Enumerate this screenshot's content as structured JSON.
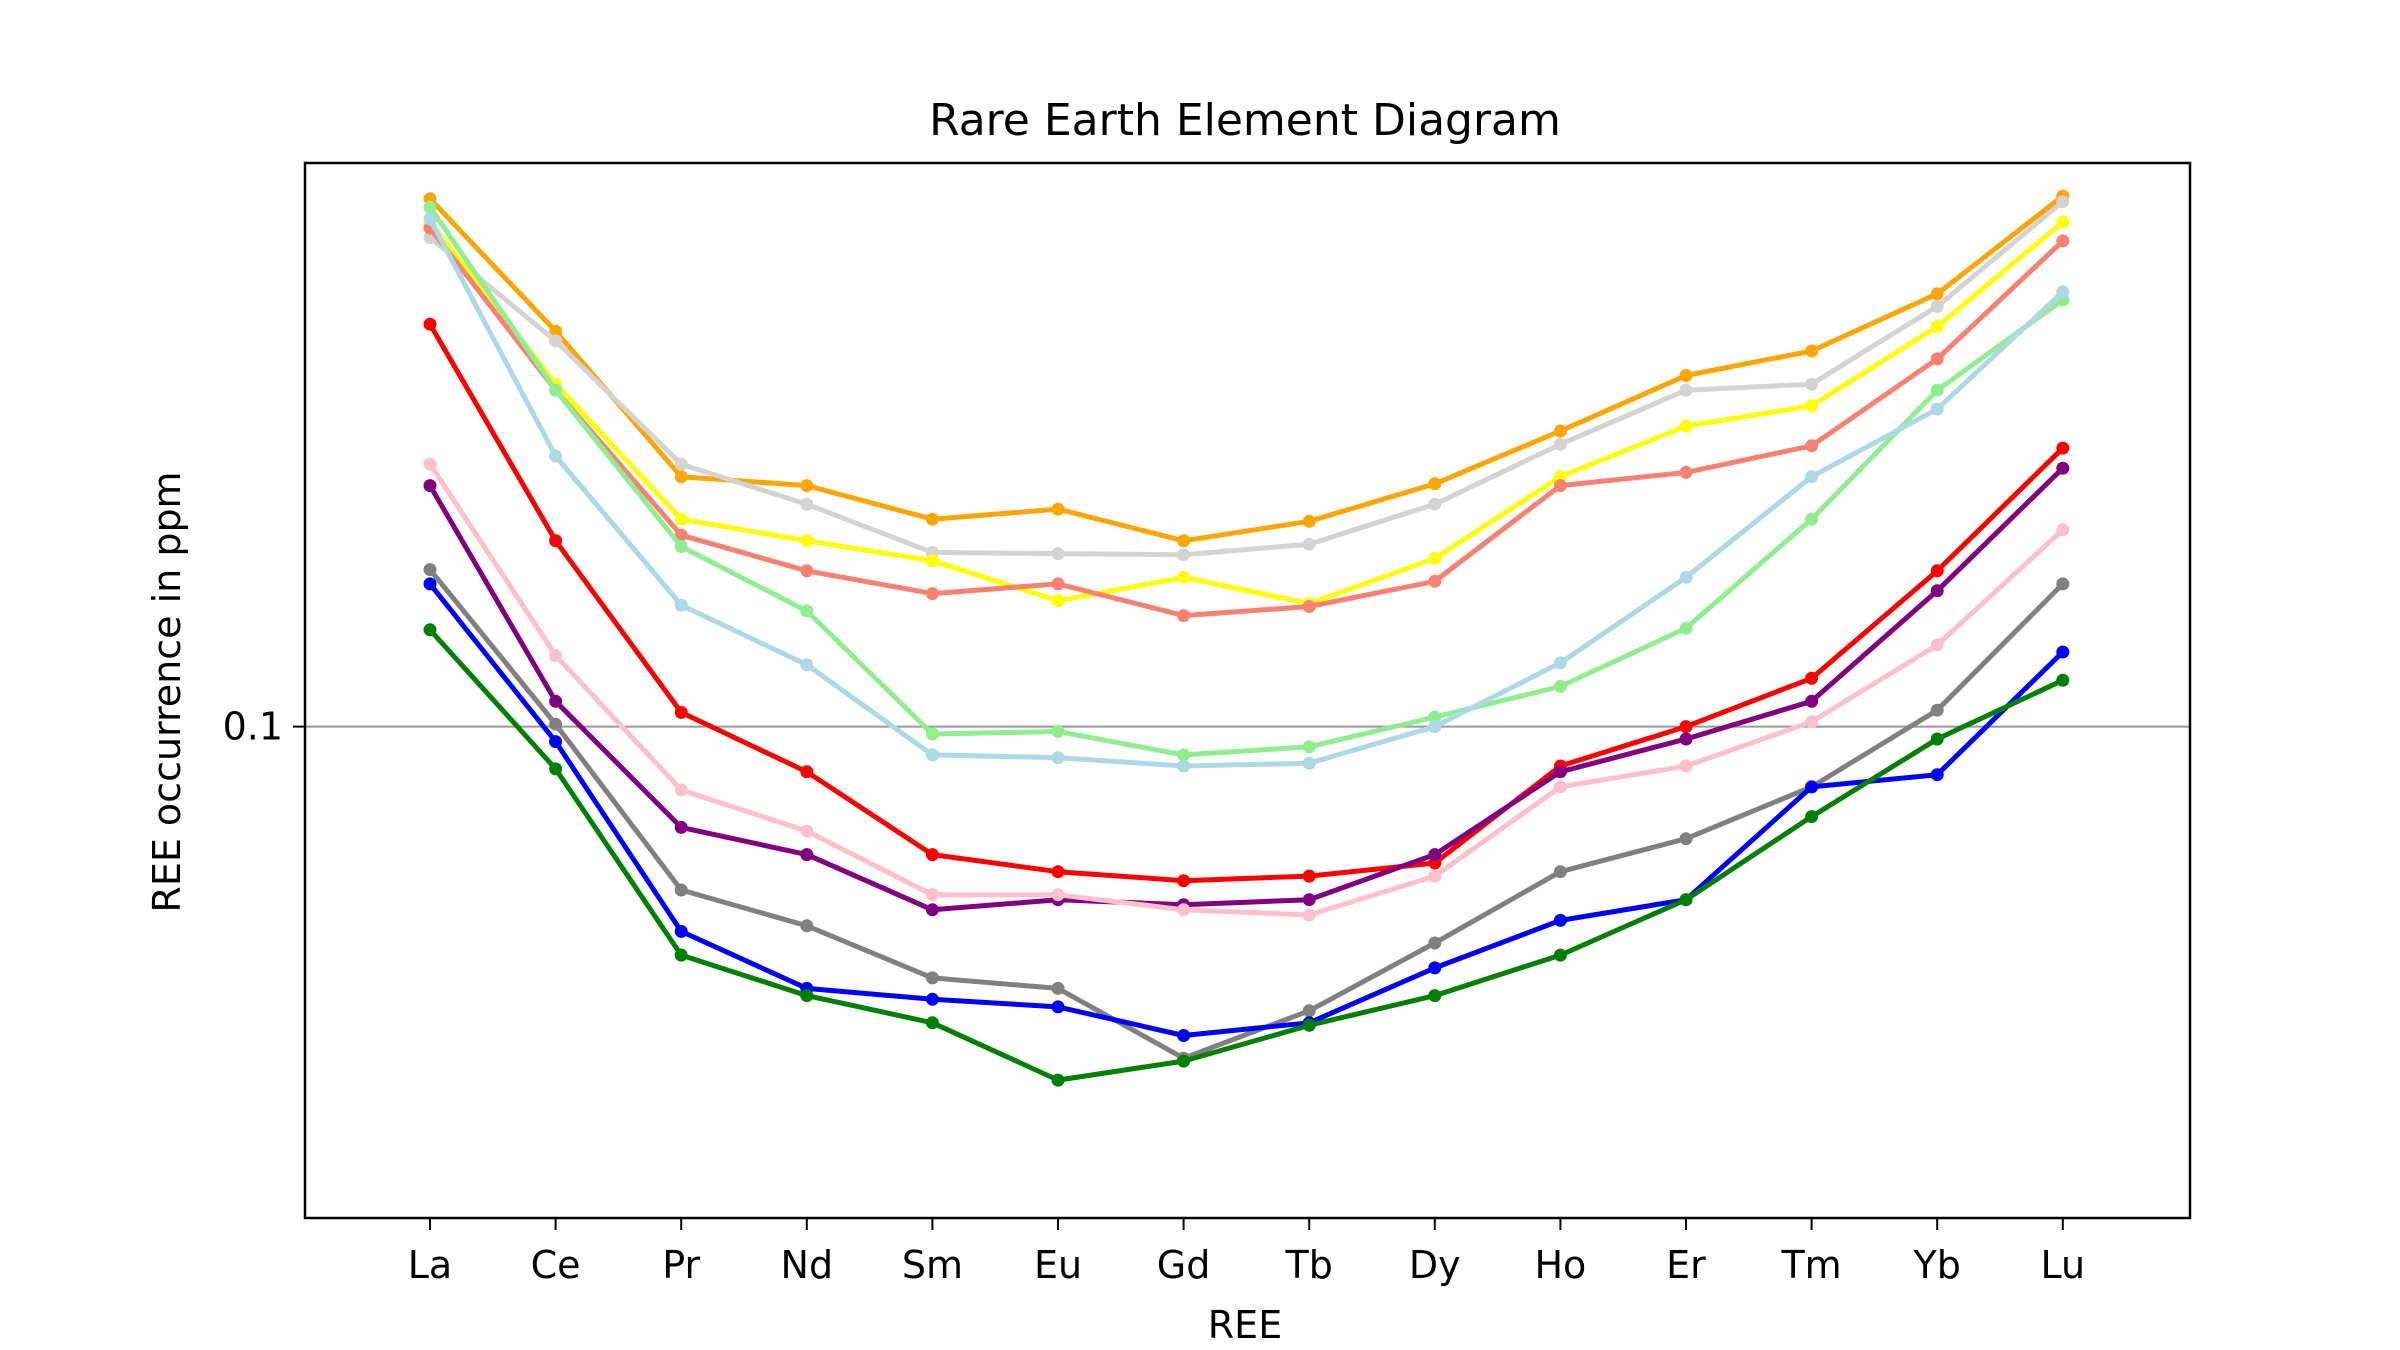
{
  "chart_data": {
    "type": "line",
    "title": "Rare Earth Element Diagram",
    "xlabel": "REE",
    "ylabel": "REE occurrence in ppm",
    "categories": [
      "La",
      "Ce",
      "Pr",
      "Nd",
      "Sm",
      "Eu",
      "Gd",
      "Tb",
      "Dy",
      "Ho",
      "Er",
      "Tm",
      "Yb",
      "Lu"
    ],
    "yscale": "log",
    "ylim": [
      0.0132,
      1.02
    ],
    "y_ticks": [
      {
        "value": 0.1,
        "label": "0.1"
      }
    ],
    "reference_line": {
      "y": 0.1,
      "color": "#999999"
    },
    "grid": false,
    "legend": "none",
    "series": [
      {
        "color": "#ffa500",
        "values": [
          0.88,
          0.51,
          0.28,
          0.27,
          0.235,
          0.245,
          0.215,
          0.233,
          0.272,
          0.338,
          0.425,
          0.47,
          0.595,
          0.89
        ]
      },
      {
        "color": "#d3d3d3",
        "values": [
          0.75,
          0.49,
          0.295,
          0.25,
          0.205,
          0.204,
          0.203,
          0.212,
          0.25,
          0.32,
          0.4,
          0.41,
          0.565,
          0.87
        ]
      },
      {
        "color": "#ffff00",
        "values": [
          0.8,
          0.41,
          0.235,
          0.215,
          0.198,
          0.168,
          0.185,
          0.166,
          0.2,
          0.28,
          0.345,
          0.375,
          0.52,
          0.8
        ]
      },
      {
        "color": "#fa8072",
        "values": [
          0.78,
          0.4,
          0.22,
          0.19,
          0.173,
          0.18,
          0.158,
          0.164,
          0.182,
          0.27,
          0.285,
          0.318,
          0.455,
          0.74
        ]
      },
      {
        "color": "#90ee90",
        "values": [
          0.85,
          0.4,
          0.21,
          0.161,
          0.097,
          0.098,
          0.089,
          0.092,
          0.104,
          0.118,
          0.15,
          0.235,
          0.4,
          0.58
        ]
      },
      {
        "color": "#add8e6",
        "values": [
          0.81,
          0.305,
          0.165,
          0.129,
          0.089,
          0.088,
          0.085,
          0.086,
          0.1,
          0.13,
          0.185,
          0.28,
          0.37,
          0.6
        ]
      },
      {
        "color": "#ff0000",
        "values": [
          0.525,
          0.215,
          0.106,
          0.083,
          0.059,
          0.055,
          0.053,
          0.054,
          0.057,
          0.085,
          0.1,
          0.122,
          0.19,
          0.315
        ]
      },
      {
        "color": "#800080",
        "values": [
          0.27,
          0.111,
          0.066,
          0.059,
          0.047,
          0.049,
          0.048,
          0.049,
          0.059,
          0.083,
          0.095,
          0.111,
          0.175,
          0.29
        ]
      },
      {
        "color": "#ffc0cb",
        "values": [
          0.295,
          0.134,
          0.077,
          0.065,
          0.05,
          0.05,
          0.047,
          0.046,
          0.054,
          0.078,
          0.085,
          0.102,
          0.14,
          0.225
        ]
      },
      {
        "color": "#808080",
        "values": [
          0.191,
          0.101,
          0.051,
          0.044,
          0.0355,
          0.034,
          0.0255,
          0.031,
          0.041,
          0.055,
          0.063,
          0.078,
          0.107,
          0.18
        ]
      },
      {
        "color": "#0000ff",
        "values": [
          0.18,
          0.094,
          0.043,
          0.034,
          0.0325,
          0.0315,
          0.028,
          0.0295,
          0.037,
          0.045,
          0.049,
          0.078,
          0.082,
          0.136
        ]
      },
      {
        "color": "#008000",
        "values": [
          0.149,
          0.084,
          0.039,
          0.033,
          0.0295,
          0.0233,
          0.0252,
          0.0292,
          0.033,
          0.039,
          0.049,
          0.069,
          0.095,
          0.121
        ]
      }
    ]
  }
}
